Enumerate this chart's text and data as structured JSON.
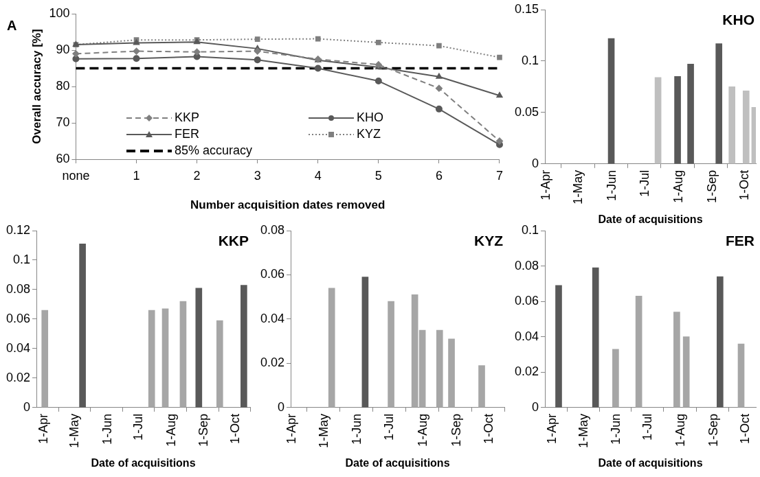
{
  "chart_data": [
    {
      "type": "line",
      "annotations": [
        "A"
      ],
      "xlabel": "Number acquisition dates removed",
      "ylabel": "Overall accuracy [%]",
      "categories": [
        "none",
        "1",
        "2",
        "3",
        "4",
        "5",
        "6",
        "7"
      ],
      "ylim": [
        60,
        100
      ],
      "yticks": [
        60,
        70,
        80,
        90,
        100
      ],
      "legend": "bottom left",
      "series": [
        {
          "name": "KKP",
          "color": "#7f7f7f",
          "line_style": "dashed",
          "marker": "diamond",
          "values": [
            89,
            89.7,
            89.5,
            89.7,
            87.5,
            86,
            79.5,
            65
          ]
        },
        {
          "name": "KHO",
          "color": "#595959",
          "line_style": "solid",
          "marker": "circle",
          "values": [
            87.6,
            87.7,
            88.2,
            87.3,
            85,
            81.5,
            73.8,
            64
          ]
        },
        {
          "name": "FER",
          "color": "#595959",
          "line_style": "solid",
          "marker": "triangle",
          "values": [
            91.5,
            92,
            92.2,
            90.4,
            87.2,
            85.3,
            82.7,
            77.5
          ]
        },
        {
          "name": "KYZ",
          "color": "#7f7f7f",
          "line_style": "dotted",
          "marker": "square",
          "values": [
            91.5,
            92.8,
            92.8,
            93,
            93.1,
            92.1,
            91.2,
            88
          ]
        }
      ],
      "ref_lines": [
        {
          "axis": "y",
          "value": 85,
          "label": "85% accuracy",
          "color": "#000000",
          "line_style": "dashed"
        }
      ]
    },
    {
      "type": "bar",
      "title": "KHO",
      "xlabel": "Date of acquisitions",
      "x": [
        "--06-01",
        "--07-14",
        "--08-01",
        "--08-13",
        "--09-08",
        "--09-20",
        "--10-03",
        "--10-11"
      ],
      "values": [
        0.122,
        0.084,
        0.085,
        0.097,
        0.117,
        0.075,
        0.071,
        0.055
      ],
      "colors": [
        "#595959",
        "#bfbfbf",
        "#595959",
        "#595959",
        "#595959",
        "#bfbfbf",
        "#bfbfbf",
        "#bfbfbf"
      ],
      "xlim": [
        "--04-01",
        "--10-12"
      ],
      "xticks": [
        {
          "value": "--04-01",
          "label": "1-Apr"
        },
        {
          "value": "--05-01",
          "label": "1-May"
        },
        {
          "value": "--06-01",
          "label": "1-Jun"
        },
        {
          "value": "--07-01",
          "label": "1-Jul"
        },
        {
          "value": "--08-01",
          "label": "1-Aug"
        },
        {
          "value": "--09-01",
          "label": "1-Sep"
        },
        {
          "value": "--10-01",
          "label": "1-Oct"
        }
      ],
      "ylim": [
        0,
        0.15
      ],
      "yticks": [
        0,
        0.05,
        0.1,
        0.15
      ]
    },
    {
      "type": "bar",
      "title": "KKP",
      "xlabel": "Date of acquisitions",
      "x": [
        "--04-03",
        "--05-09",
        "--07-14",
        "--07-27",
        "--08-13",
        "--08-28",
        "--09-17",
        "--10-10"
      ],
      "values": [
        0.066,
        0.111,
        0.066,
        0.067,
        0.072,
        0.081,
        0.059,
        0.083
      ],
      "colors": [
        "#a6a6a6",
        "#595959",
        "#a6a6a6",
        "#a6a6a6",
        "#a6a6a6",
        "#595959",
        "#a6a6a6",
        "#595959"
      ],
      "xlim": [
        "--03-26",
        "--10-16"
      ],
      "xticks": [
        {
          "value": "--04-01",
          "label": "1-Apr"
        },
        {
          "value": "--05-01",
          "label": "1-May"
        },
        {
          "value": "--06-01",
          "label": "1-Jun"
        },
        {
          "value": "--07-01",
          "label": "1-Jul"
        },
        {
          "value": "--08-01",
          "label": "1-Aug"
        },
        {
          "value": "--09-01",
          "label": "1-Sep"
        },
        {
          "value": "--10-01",
          "label": "1-Oct"
        }
      ],
      "ylim": [
        0,
        0.12
      ],
      "yticks": [
        0,
        0.02,
        0.04,
        0.06,
        0.08,
        0.1,
        0.12
      ]
    },
    {
      "type": "bar",
      "title": "KYZ",
      "xlabel": "Date of acquisitions",
      "x": [
        "--05-09",
        "--06-09",
        "--07-03",
        "--07-25",
        "--08-01",
        "--08-17",
        "--08-28",
        "--09-25"
      ],
      "values": [
        0.054,
        0.059,
        0.048,
        0.051,
        0.035,
        0.035,
        0.031,
        0.019
      ],
      "colors": [
        "#a6a6a6",
        "#595959",
        "#a6a6a6",
        "#a6a6a6",
        "#a6a6a6",
        "#a6a6a6",
        "#a6a6a6",
        "#a6a6a6"
      ],
      "xlim": [
        "--04-01",
        "--10-16"
      ],
      "xticks": [
        {
          "value": "--04-01",
          "label": "1-Apr"
        },
        {
          "value": "--05-01",
          "label": "1-May"
        },
        {
          "value": "--06-01",
          "label": "1-Jun"
        },
        {
          "value": "--07-01",
          "label": "1-Jul"
        },
        {
          "value": "--08-01",
          "label": "1-Aug"
        },
        {
          "value": "--09-01",
          "label": "1-Sep"
        },
        {
          "value": "--10-01",
          "label": "1-Oct"
        }
      ],
      "ylim": [
        0,
        0.08
      ],
      "yticks": [
        0,
        0.02,
        0.04,
        0.06,
        0.08
      ]
    },
    {
      "type": "bar",
      "title": "FER",
      "xlabel": "Date of acquisitions",
      "x": [
        "--04-08",
        "--05-13",
        "--06-01",
        "--06-23",
        "--07-29",
        "--08-07",
        "--09-08",
        "--09-28"
      ],
      "values": [
        0.069,
        0.079,
        0.033,
        0.063,
        0.054,
        0.04,
        0.074,
        0.036
      ],
      "colors": [
        "#595959",
        "#595959",
        "#a6a6a6",
        "#a6a6a6",
        "#a6a6a6",
        "#a6a6a6",
        "#595959",
        "#a6a6a6"
      ],
      "xlim": [
        "--03-26",
        "--10-12"
      ],
      "xticks": [
        {
          "value": "--04-01",
          "label": "1-Apr"
        },
        {
          "value": "--05-01",
          "label": "1-May"
        },
        {
          "value": "--06-01",
          "label": "1-Jun"
        },
        {
          "value": "--07-01",
          "label": "1-Jul"
        },
        {
          "value": "--08-01",
          "label": "1-Aug"
        },
        {
          "value": "--09-01",
          "label": "1-Sep"
        },
        {
          "value": "--10-01",
          "label": "1-Oct"
        }
      ],
      "ylim": [
        0,
        0.1
      ],
      "yticks": [
        0,
        0.02,
        0.04,
        0.06,
        0.08,
        0.1
      ]
    }
  ]
}
